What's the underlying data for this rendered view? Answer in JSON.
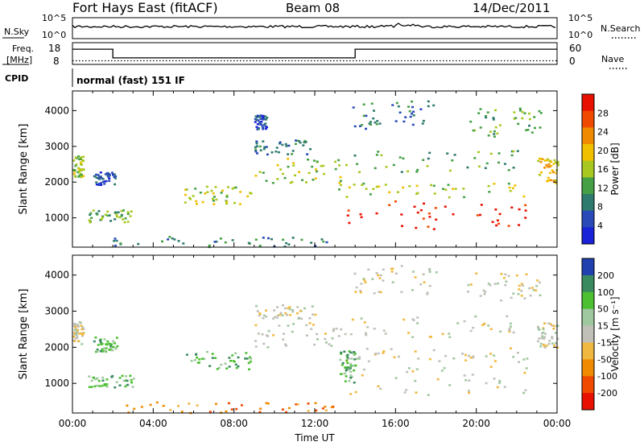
{
  "header": {
    "title": "Fort Hays East (fitACF)",
    "beam": "Beam 08",
    "date": "14/Dec/2011"
  },
  "nsky_panel": {
    "label": "N.Sky",
    "ticks_left": [
      "10^5",
      "10^0"
    ],
    "ticks_right": [
      "10^5",
      "10^0"
    ],
    "right_label": "N.Search"
  },
  "freq_panel": {
    "label_line1": "Freq.",
    "label_line2": "[MHz]",
    "ticks_left": [
      "18",
      "8"
    ],
    "ticks_right": [
      "60",
      "0"
    ],
    "right_label": "Nave",
    "freq_steps": [
      {
        "time": 0.0,
        "mhz": 15
      },
      {
        "time": 2.0,
        "mhz": 11
      },
      {
        "time": 14.0,
        "mhz": 15
      },
      {
        "time": 24.0,
        "mhz": 15
      }
    ],
    "nave_level": 10
  },
  "cpid": {
    "label": "CPID",
    "text": "normal (fast) 151 IF"
  },
  "colors": {
    "power": [
      "#1a22d8",
      "#2a4ab8",
      "#2e7a6e",
      "#45a045",
      "#a8c820",
      "#f0c000",
      "#f08a00",
      "#f04a00",
      "#e81000"
    ],
    "velocity": [
      "#e81000",
      "#f04a00",
      "#f08a00",
      "#f0b840",
      "#c0c0b8",
      "#a0c8a0",
      "#4cc030",
      "#3a8a60",
      "#2040b0"
    ]
  },
  "chart_data": [
    {
      "type": "heatmap",
      "parameter": "power",
      "ylabel": "Slant Range [km]",
      "ylim": [
        180,
        4550
      ],
      "y_ticks": [
        "1000",
        "2000",
        "3000",
        "4000"
      ],
      "xlim": [
        0,
        24
      ],
      "colorbar_label": "Power [dB]",
      "colorbar_ticks": [
        "28",
        "24",
        "20",
        "16",
        "12",
        "8",
        "4"
      ],
      "regions": [
        {
          "t0": 0.0,
          "t1": 0.5,
          "r0": 2100,
          "r1": 2750,
          "level": 4
        },
        {
          "t0": 0.7,
          "t1": 3.0,
          "r0": 900,
          "r1": 1250,
          "level": 3
        },
        {
          "t0": 1.0,
          "t1": 2.2,
          "r0": 1900,
          "r1": 2300,
          "level": 1
        },
        {
          "t0": 5.5,
          "t1": 8.8,
          "r0": 1400,
          "r1": 1900,
          "level": 4
        },
        {
          "t0": 9.0,
          "t1": 13.5,
          "r0": 2000,
          "r1": 2700,
          "level": 4
        },
        {
          "t0": 9.0,
          "t1": 12.0,
          "r0": 2800,
          "r1": 3200,
          "level": 2
        },
        {
          "t0": 9.0,
          "t1": 9.6,
          "r0": 3500,
          "r1": 3900,
          "level": 1
        },
        {
          "t0": 13.3,
          "t1": 22.6,
          "r0": 700,
          "r1": 1500,
          "level": 8
        },
        {
          "t0": 13.0,
          "t1": 22.5,
          "r0": 1600,
          "r1": 2000,
          "level": 4
        },
        {
          "t0": 13.5,
          "t1": 22.0,
          "r0": 2300,
          "r1": 2900,
          "level": 3
        },
        {
          "t0": 13.8,
          "t1": 18.0,
          "r0": 3500,
          "r1": 4300,
          "level": 2
        },
        {
          "t0": 19.5,
          "t1": 23.2,
          "r0": 3300,
          "r1": 4100,
          "level": 3
        },
        {
          "t0": 23.0,
          "t1": 24.0,
          "r0": 2000,
          "r1": 2700,
          "level": 5
        },
        {
          "t0": 2.0,
          "t1": 13.0,
          "r0": 200,
          "r1": 500,
          "level": 2
        }
      ]
    },
    {
      "type": "heatmap",
      "parameter": "velocity",
      "ylabel": "Slant Range [km]",
      "ylim": [
        180,
        4550
      ],
      "y_ticks": [
        "1000",
        "2000",
        "3000",
        "4000"
      ],
      "xlim": [
        0,
        24
      ],
      "xlabel": "Time UT",
      "x_ticks": [
        "00:00",
        "04:00",
        "08:00",
        "12:00",
        "16:00",
        "20:00",
        "00:00"
      ],
      "colorbar_label": "Velocity [m s⁻¹]",
      "colorbar_ticks": [
        "200",
        "100",
        "50",
        "15",
        "-15",
        "-50",
        "-100",
        "-200"
      ],
      "regions": [
        {
          "t0": 0.0,
          "t1": 0.5,
          "r0": 2100,
          "r1": 2750,
          "level": 4
        },
        {
          "t0": 0.7,
          "t1": 3.0,
          "r0": 900,
          "r1": 1250,
          "level": 6
        },
        {
          "t0": 1.0,
          "t1": 2.2,
          "r0": 1900,
          "r1": 2300,
          "level": 6
        },
        {
          "t0": 5.5,
          "t1": 8.8,
          "r0": 1400,
          "r1": 1900,
          "level": 6
        },
        {
          "t0": 9.0,
          "t1": 13.5,
          "r0": 2000,
          "r1": 2700,
          "level": 4
        },
        {
          "t0": 9.0,
          "t1": 12.0,
          "r0": 2800,
          "r1": 3200,
          "level": 4
        },
        {
          "t0": 13.3,
          "t1": 22.6,
          "r0": 700,
          "r1": 1500,
          "level": 4
        },
        {
          "t0": 13.0,
          "t1": 22.5,
          "r0": 1600,
          "r1": 2000,
          "level": 4
        },
        {
          "t0": 13.5,
          "t1": 22.0,
          "r0": 2300,
          "r1": 2900,
          "level": 4
        },
        {
          "t0": 13.8,
          "t1": 18.0,
          "r0": 3500,
          "r1": 4300,
          "level": 4
        },
        {
          "t0": 19.5,
          "t1": 23.2,
          "r0": 3300,
          "r1": 4100,
          "level": 4
        },
        {
          "t0": 23.0,
          "t1": 24.0,
          "r0": 2000,
          "r1": 2700,
          "level": 4
        },
        {
          "t0": 13.2,
          "t1": 14.0,
          "r0": 1000,
          "r1": 2000,
          "level": 6
        },
        {
          "t0": 2.0,
          "t1": 13.0,
          "r0": 200,
          "r1": 500,
          "level": 2
        }
      ]
    }
  ]
}
